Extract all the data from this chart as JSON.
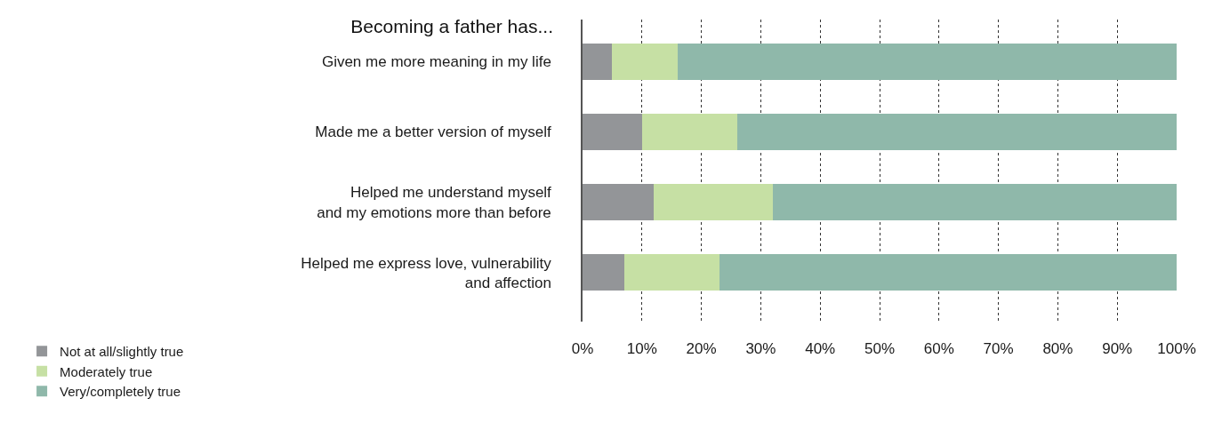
{
  "chart_data": {
    "type": "bar",
    "orientation": "horizontal",
    "stacked": true,
    "title": "Becoming a father has...",
    "categories": [
      "Given me more meaning in my life",
      "Made me a better version of myself",
      "Helped me understand myself\nand my emotions more than before",
      "Helped me express love, vulnerability\nand affection"
    ],
    "series": [
      {
        "name": "Not at all/slightly true",
        "color": "#939598",
        "values": [
          5,
          10,
          12,
          7
        ]
      },
      {
        "name": "Moderately true",
        "color": "#c6e0a4",
        "values": [
          11,
          16,
          20,
          16
        ]
      },
      {
        "name": "Very/completely true",
        "color": "#8fb8aa",
        "values": [
          84,
          74,
          68,
          77
        ]
      }
    ],
    "xlim": [
      0,
      100
    ],
    "xticks": [
      {
        "value": 0,
        "label": "0%"
      },
      {
        "value": 10,
        "label": "10%"
      },
      {
        "value": 20,
        "label": "20%"
      },
      {
        "value": 30,
        "label": "30%"
      },
      {
        "value": 40,
        "label": "40%"
      },
      {
        "value": 50,
        "label": "50%"
      },
      {
        "value": 60,
        "label": "60%"
      },
      {
        "value": 70,
        "label": "70%"
      },
      {
        "value": 80,
        "label": "80%"
      },
      {
        "value": 90,
        "label": "90%"
      },
      {
        "value": 100,
        "label": "100%"
      }
    ],
    "grid": "x",
    "legend": "bottom left"
  }
}
